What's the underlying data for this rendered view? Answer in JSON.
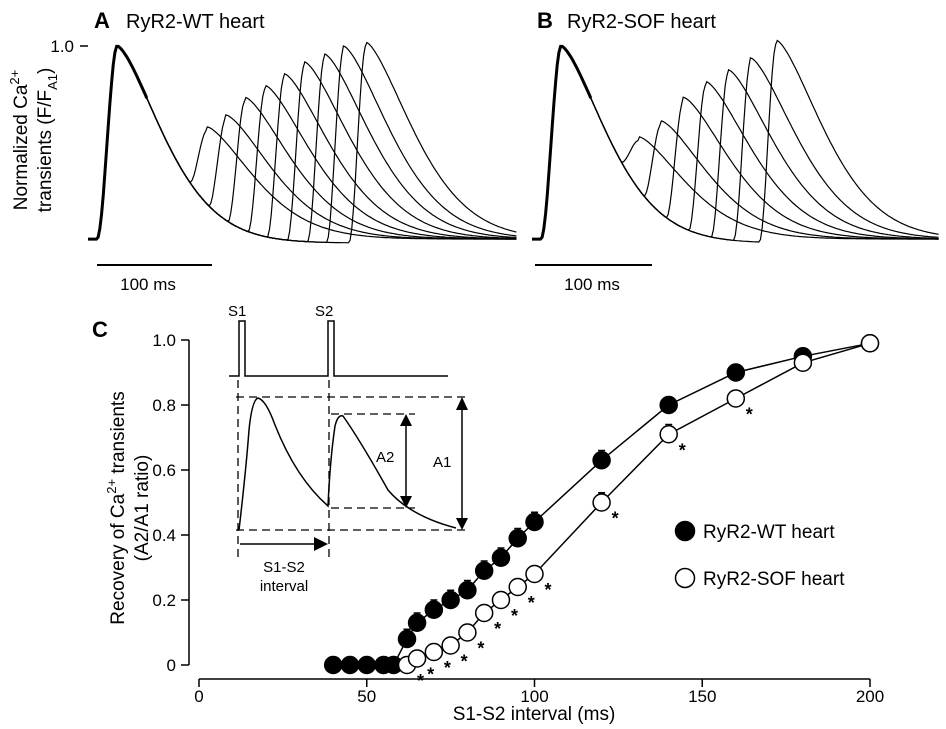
{
  "panel_a": {
    "letter": "A",
    "title": "RyR2-WT heart",
    "ylabel_line1": "Normalized Ca",
    "ylabel_sup": "2+",
    "ylabel_line2": "transients (F/F",
    "ylabel_sub": "A1",
    "ylabel_close": ")",
    "ytick": "1.0",
    "scalebar": "100 ms"
  },
  "panel_b": {
    "letter": "B",
    "title": "RyR2-SOF heart",
    "scalebar": "100 ms"
  },
  "panel_c": {
    "letter": "C",
    "ylabel_line1_pre": "Recovery of Ca",
    "ylabel_line1_sup": "2+",
    "ylabel_line1_post": " transients",
    "ylabel_line2": "(A2/A1 ratio)",
    "xlabel": "S1-S2 interval (ms)",
    "inset": {
      "s1": "S1",
      "s2": "S2",
      "a1": "A1",
      "a2": "A2",
      "interval_line1": "S1-S2",
      "interval_line2": "interval"
    },
    "significance_marker": "*"
  },
  "chart_data": [
    {
      "type": "line",
      "panel": "A",
      "title": "RyR2-WT heart",
      "ylabel": "Normalized Ca2+ transients (F/FA1)",
      "yticks": [
        "1.0"
      ],
      "scalebar": "100 ms",
      "s2_peak_heights": [
        0.57,
        0.63,
        0.72,
        0.78,
        0.84,
        0.9,
        0.94,
        0.98,
        1.0
      ],
      "note": "superimposed S1 then S2 Ca2+ transient traces"
    },
    {
      "type": "line",
      "panel": "B",
      "title": "RyR2-SOF heart",
      "scalebar": "100 ms",
      "s2_peak_heights": [
        0.52,
        0.6,
        0.72,
        0.8,
        0.86,
        0.92,
        1.01
      ],
      "note": "superimposed S1 then S2 Ca2+ transient traces"
    },
    {
      "type": "scatter",
      "panel": "C",
      "xlabel": "S1-S2 interval (ms)",
      "ylabel": "Recovery of Ca2+ transients (A2/A1 ratio)",
      "xlim": [
        0,
        200
      ],
      "ylim": [
        0,
        1.0
      ],
      "xticks": [
        0,
        50,
        100,
        150,
        200
      ],
      "yticks": [
        0,
        0.2,
        0.4,
        0.6,
        0.8,
        1.0
      ],
      "ytick_labels": [
        "0",
        "0.2",
        "0.4",
        "0.6",
        "0.8",
        "1.0"
      ],
      "legend_position": "right",
      "series": [
        {
          "name": "RyR2-WT heart",
          "marker": "filled-circle",
          "x": [
            40,
            45,
            50,
            55,
            58,
            62,
            65,
            70,
            75,
            80,
            85,
            90,
            95,
            100,
            120,
            140,
            160,
            180,
            200
          ],
          "y": [
            0,
            0,
            0,
            0,
            0,
            0.08,
            0.13,
            0.17,
            0.2,
            0.23,
            0.29,
            0.33,
            0.39,
            0.44,
            0.63,
            0.8,
            0.9,
            0.95,
            0.99
          ],
          "err": [
            0,
            0,
            0,
            0,
            0,
            0.03,
            0.03,
            0.03,
            0.03,
            0.03,
            0.03,
            0.03,
            0.03,
            0.03,
            0.03,
            0.02,
            0.02,
            0.01,
            0
          ]
        },
        {
          "name": "RyR2-SOF heart",
          "marker": "open-circle",
          "x": [
            62,
            65,
            70,
            75,
            80,
            85,
            90,
            95,
            100,
            120,
            140,
            160,
            180,
            200
          ],
          "y": [
            0,
            0.02,
            0.04,
            0.06,
            0.1,
            0.16,
            0.2,
            0.24,
            0.28,
            0.5,
            0.71,
            0.82,
            0.93,
            0.99
          ],
          "err": [
            0,
            0,
            0.01,
            0.02,
            0.02,
            0.02,
            0.02,
            0.02,
            0.02,
            0.03,
            0.03,
            0.02,
            0.01,
            0
          ],
          "significant": [
            true,
            true,
            true,
            true,
            true,
            true,
            true,
            true,
            true,
            true,
            true,
            true,
            false,
            false
          ]
        }
      ]
    }
  ],
  "colors": {
    "ink": "#000000",
    "background": "#ffffff"
  }
}
